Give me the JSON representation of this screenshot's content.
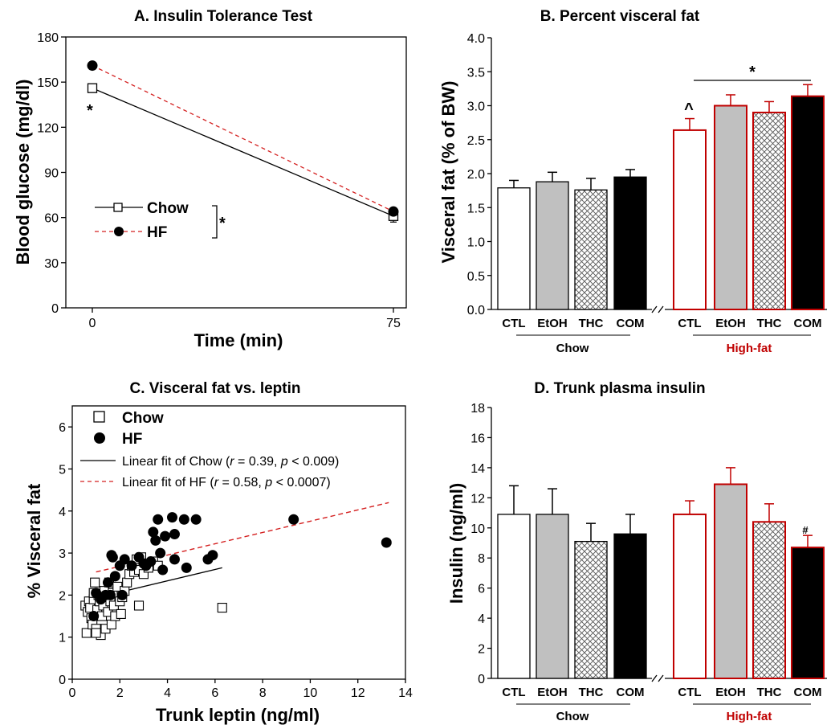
{
  "colors": {
    "chow": "#000000",
    "hf": "#c00000",
    "hf_fit": "#d42020",
    "gray": "#c0c0c0"
  },
  "chart_data": [
    {
      "id": "A",
      "type": "line",
      "title": "A. Insulin Tolerance Test",
      "xlabel": "Time (min)",
      "ylabel": "Blood glucose (mg/dl)",
      "xticks": [
        "0",
        "75"
      ],
      "yticks": [
        "0",
        "30",
        "60",
        "90",
        "120",
        "150",
        "180"
      ],
      "ylim": [
        0,
        180
      ],
      "x": [
        0,
        75
      ],
      "series": [
        {
          "name": "Chow",
          "values": [
            146,
            61
          ],
          "errors": [
            0,
            4
          ],
          "marker": "open-square",
          "line": "solid"
        },
        {
          "name": "HF",
          "values": [
            161,
            64
          ],
          "errors": [
            0,
            2
          ],
          "marker": "filled-circle",
          "line": "dashed"
        }
      ],
      "annotations": [
        "*",
        "*"
      ]
    },
    {
      "id": "B",
      "type": "bar",
      "title": "B. Percent visceral fat",
      "ylabel": "Visceral fat (% of BW)",
      "yticks": [
        "0.0",
        "0.5",
        "1.0",
        "1.5",
        "2.0",
        "2.5",
        "3.0",
        "3.5",
        "4.0"
      ],
      "ylim": [
        0,
        4
      ],
      "categories": [
        "CTL",
        "EtOH",
        "THC",
        "COM"
      ],
      "groups": [
        "Chow",
        "High-fat"
      ],
      "series": [
        {
          "name": "Chow",
          "values": [
            1.79,
            1.88,
            1.76,
            1.95
          ],
          "errors": [
            0.11,
            0.14,
            0.17,
            0.11
          ]
        },
        {
          "name": "High-fat",
          "values": [
            2.64,
            3.0,
            2.9,
            3.14
          ],
          "errors": [
            0.17,
            0.16,
            0.16,
            0.17
          ]
        }
      ],
      "annotations": [
        "^",
        "*"
      ]
    },
    {
      "id": "C",
      "type": "scatter",
      "title": "C. Visceral fat vs. leptin",
      "xlabel": "Trunk leptin (ng/ml)",
      "ylabel": "% Visceral fat",
      "xticks": [
        "0",
        "2",
        "4",
        "6",
        "8",
        "10",
        "12",
        "14"
      ],
      "yticks": [
        "0",
        "1",
        "2",
        "3",
        "4",
        "5",
        "6"
      ],
      "xlim": [
        0,
        14
      ],
      "ylim": [
        0,
        6.5
      ],
      "legend": [
        {
          "label": "Chow"
        },
        {
          "label": "HF"
        },
        {
          "pre": "Linear fit of Chow (",
          "r": "r",
          "mid": " = 0.39, ",
          "p": "p",
          "post": " < 0.009)"
        },
        {
          "pre": "Linear fit of HF (",
          "r": "r",
          "mid": " = 0.58, ",
          "p": "p",
          "post": " < 0.0007)"
        }
      ],
      "series": [
        {
          "name": "Chow",
          "marker": "open-square",
          "points": [
            [
              0.55,
              1.75
            ],
            [
              0.6,
              1.1
            ],
            [
              0.65,
              1.6
            ],
            [
              0.7,
              1.85
            ],
            [
              0.75,
              1.7
            ],
            [
              0.8,
              1.45
            ],
            [
              0.85,
              1.3
            ],
            [
              0.9,
              1.9
            ],
            [
              0.95,
              2.3
            ],
            [
              1.0,
              1.2
            ],
            [
              1.05,
              1.65
            ],
            [
              1.1,
              2.0
            ],
            [
              1.15,
              1.85
            ],
            [
              1.2,
              1.05
            ],
            [
              1.25,
              1.5
            ],
            [
              1.3,
              1.75
            ],
            [
              1.35,
              2.1
            ],
            [
              1.4,
              1.2
            ],
            [
              1.45,
              1.95
            ],
            [
              1.5,
              1.6
            ],
            [
              1.55,
              2.3
            ],
            [
              1.6,
              1.85
            ],
            [
              1.65,
              1.3
            ],
            [
              1.7,
              2.05
            ],
            [
              1.75,
              1.75
            ],
            [
              1.8,
              1.5
            ],
            [
              1.9,
              2.2
            ],
            [
              2.0,
              1.85
            ],
            [
              2.05,
              1.55
            ],
            [
              2.1,
              1.95
            ],
            [
              2.2,
              2.1
            ],
            [
              2.3,
              2.3
            ],
            [
              2.4,
              2.5
            ],
            [
              2.5,
              2.7
            ],
            [
              2.6,
              2.55
            ],
            [
              2.7,
              2.85
            ],
            [
              2.8,
              2.6
            ],
            [
              2.9,
              2.9
            ],
            [
              3.0,
              2.5
            ],
            [
              3.2,
              2.65
            ],
            [
              3.4,
              2.8
            ],
            [
              3.6,
              2.7
            ],
            [
              2.8,
              1.75
            ],
            [
              1.0,
              1.1
            ],
            [
              0.9,
              2.05
            ],
            [
              6.3,
              1.7
            ]
          ]
        },
        {
          "name": "HF",
          "marker": "filled-circle",
          "points": [
            [
              0.9,
              1.5
            ],
            [
              1.0,
              2.05
            ],
            [
              1.2,
              1.9
            ],
            [
              1.4,
              2.0
            ],
            [
              1.5,
              2.3
            ],
            [
              1.6,
              2.0
            ],
            [
              1.7,
              2.9
            ],
            [
              1.65,
              2.95
            ],
            [
              1.8,
              2.45
            ],
            [
              2.0,
              2.7
            ],
            [
              2.2,
              2.85
            ],
            [
              2.1,
              2.0
            ],
            [
              2.5,
              2.7
            ],
            [
              2.8,
              2.9
            ],
            [
              3.0,
              2.75
            ],
            [
              3.1,
              2.7
            ],
            [
              3.3,
              2.8
            ],
            [
              3.4,
              3.5
            ],
            [
              3.5,
              3.3
            ],
            [
              3.6,
              3.8
            ],
            [
              3.7,
              3.0
            ],
            [
              3.9,
              3.4
            ],
            [
              4.2,
              3.85
            ],
            [
              4.3,
              3.45
            ],
            [
              4.7,
              3.8
            ],
            [
              4.3,
              2.85
            ],
            [
              4.8,
              2.65
            ],
            [
              5.2,
              3.8
            ],
            [
              5.7,
              2.85
            ],
            [
              5.9,
              2.95
            ],
            [
              3.8,
              2.6
            ],
            [
              9.3,
              3.8
            ],
            [
              13.2,
              3.25
            ]
          ]
        }
      ],
      "fits": [
        {
          "name": "Chow",
          "x": [
            0.6,
            6.3
          ],
          "y": [
            1.88,
            2.65
          ]
        },
        {
          "name": "HF",
          "x": [
            1.0,
            13.3
          ],
          "y": [
            2.55,
            4.2
          ]
        }
      ]
    },
    {
      "id": "D",
      "type": "bar",
      "title": "D. Trunk plasma insulin",
      "ylabel": "Insulin (ng/ml)",
      "yticks": [
        "0",
        "2",
        "4",
        "6",
        "8",
        "10",
        "12",
        "14",
        "16",
        "18"
      ],
      "ylim": [
        0,
        18
      ],
      "categories": [
        "CTL",
        "EtOH",
        "THC",
        "COM"
      ],
      "groups": [
        "Chow",
        "High-fat"
      ],
      "series": [
        {
          "name": "Chow",
          "values": [
            10.9,
            10.9,
            9.1,
            9.6
          ],
          "errors": [
            1.9,
            1.7,
            1.2,
            1.3
          ]
        },
        {
          "name": "High-fat",
          "values": [
            10.9,
            12.9,
            10.4,
            8.7
          ],
          "errors": [
            0.9,
            1.1,
            1.2,
            0.8
          ]
        }
      ],
      "annotations": [
        "#"
      ]
    }
  ]
}
